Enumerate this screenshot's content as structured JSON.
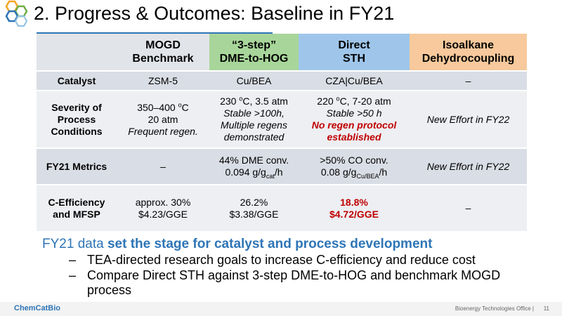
{
  "header": {
    "title": "2. Progress & Outcomes: Baseline in FY21"
  },
  "table": {
    "columns": [
      {
        "lines": [
          "MOGD",
          "Benchmark"
        ],
        "color": "#e1e4e9"
      },
      {
        "lines": [
          "“3-step”",
          "DME-to-HOG"
        ],
        "color": "#a8d69a"
      },
      {
        "lines": [
          "Direct",
          "STH"
        ],
        "color": "#9fc6ea"
      },
      {
        "lines": [
          "Isoalkane",
          "Dehydrocoupling"
        ],
        "color": "#f7c99c"
      }
    ],
    "rows": [
      {
        "label": [
          "Catalyst"
        ],
        "color": "#d9dde5",
        "height": 28,
        "cells": [
          [
            [
              {
                "text": "ZSM-5"
              }
            ]
          ],
          [
            [
              {
                "text": "Cu/BEA"
              }
            ]
          ],
          [
            [
              {
                "text": "CZA|Cu/BEA"
              }
            ]
          ],
          [
            [
              {
                "text": "–"
              }
            ]
          ]
        ]
      },
      {
        "label": [
          "Severity of",
          "Process",
          "Conditions"
        ],
        "color": "#edeff3",
        "height": 82,
        "cells": [
          [
            [
              {
                "text": "350–400 "
              },
              {
                "text": "o",
                "pos": "sup"
              },
              {
                "text": "C"
              }
            ],
            [
              {
                "text": "20 atm"
              }
            ],
            [
              {
                "text": "Frequent regen.",
                "style": "italic"
              }
            ]
          ],
          [
            [
              {
                "text": "230 "
              },
              {
                "text": "o",
                "pos": "sup"
              },
              {
                "text": "C, 3.5 atm"
              }
            ],
            [
              {
                "text": "Stable >100h,",
                "style": "italic"
              }
            ],
            [
              {
                "text": "Multiple regens",
                "style": "italic"
              }
            ],
            [
              {
                "text": "demonstrated",
                "style": "italic"
              }
            ]
          ],
          [
            [
              {
                "text": "220 "
              },
              {
                "text": "o",
                "pos": "sup"
              },
              {
                "text": "C, 7-20 atm"
              }
            ],
            [
              {
                "text": "Stable >50 h",
                "style": "italic"
              }
            ],
            [
              {
                "text": "No regen protocol",
                "style": "red-italic"
              }
            ],
            [
              {
                "text": "established",
                "style": "red-italic"
              }
            ]
          ],
          [
            [
              {
                "text": "New Effort in FY22",
                "style": "italic"
              }
            ]
          ]
        ]
      },
      {
        "label": [
          "FY21 Metrics"
        ],
        "color": "#d9dde5",
        "height": 52,
        "cells": [
          [
            [
              {
                "text": "–"
              }
            ]
          ],
          [
            [
              {
                "text": "44% DME conv."
              }
            ],
            [
              {
                "text": "0.094 g/g"
              },
              {
                "text": "cat",
                "pos": "sub"
              },
              {
                "text": "/h"
              }
            ]
          ],
          [
            [
              {
                "text": ">50% CO conv."
              }
            ],
            [
              {
                "text": "0.08 g/g"
              },
              {
                "text": "Cu/BEA",
                "pos": "sub"
              },
              {
                "text": "/h"
              }
            ]
          ],
          [
            [
              {
                "text": "New Effort in FY22",
                "style": "italic"
              }
            ]
          ]
        ]
      },
      {
        "label": [
          "C-Efficiency",
          "and MFSP"
        ],
        "color": "#edeff3",
        "height": 66,
        "cells": [
          [
            [
              {
                "text": "approx. 30%"
              }
            ],
            [
              {
                "text": "$4.23/GGE"
              }
            ]
          ],
          [
            [
              {
                "text": "26.2%"
              }
            ],
            [
              {
                "text": "$3.38/GGE"
              }
            ]
          ],
          [
            [
              {
                "text": "18.8%",
                "style": "red"
              }
            ],
            [
              {
                "text": "$4.72/GGE",
                "style": "red"
              }
            ]
          ],
          [
            [
              {
                "text": "–"
              }
            ]
          ]
        ]
      }
    ]
  },
  "summary": {
    "lead": "FY21 data ",
    "lead_bold": "set the stage for catalyst and process development",
    "bullets": [
      "TEA-directed research goals to increase C-efficiency and reduce cost",
      "Compare Direct STH against 3-step DME-to-HOG and benchmark MOGD process"
    ]
  },
  "footer": {
    "logo": "ChemCatBio",
    "office": "Bioenergy Technologies Office |",
    "page": "11"
  }
}
